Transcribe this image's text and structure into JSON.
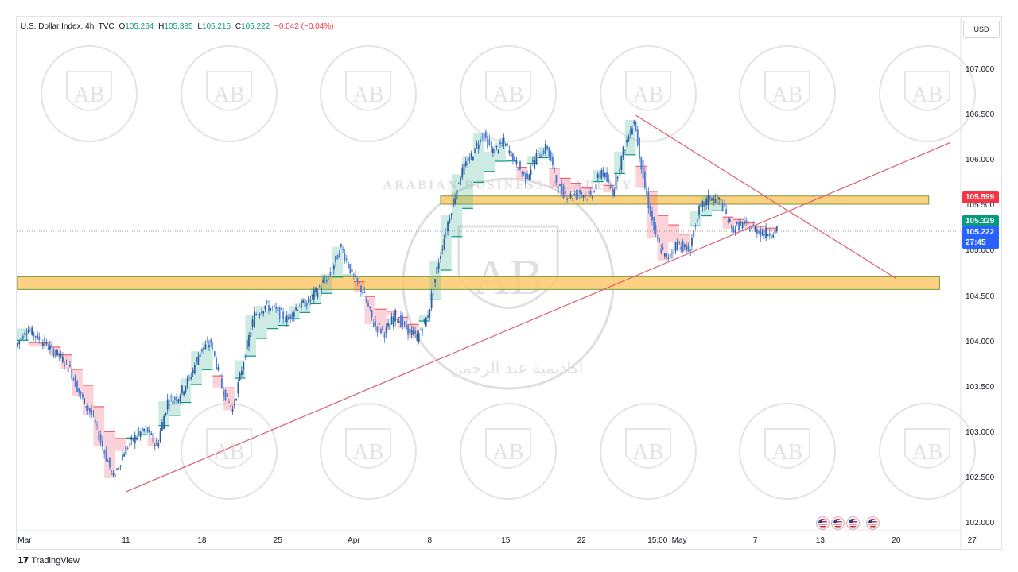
{
  "header": {
    "symbol": "U.S. Dollar Index, 4h, TVC",
    "open_label": "O",
    "open": "105.264",
    "high_label": "H",
    "high": "105.385",
    "low_label": "L",
    "low": "105.215",
    "close_label": "C",
    "close": "105.222",
    "change": "−0.042 (−0.04%)",
    "currency": "USD"
  },
  "price_tags": {
    "resistance": {
      "text": "105.599",
      "color": "#f23645"
    },
    "support_level": {
      "text": "105.329",
      "color": "#089981"
    },
    "last_price": {
      "text": "105.222",
      "color": "#2962ff"
    },
    "countdown": "27:45"
  },
  "footer": {
    "brand": "TradingView"
  },
  "watermark": {
    "title": "ARABIAN BUSINESS ACADEMY",
    "initials": "AB",
    "arabic": "أكاديمية عبد الرحمن"
  },
  "colors": {
    "up": "#089981",
    "down": "#2962ff",
    "candle": "#4a7ad6",
    "zone_fill": "#fcc96b",
    "zone_border": "#7a9a3a",
    "trendline": "#e05a6a",
    "cloud_green": "#4cb89a",
    "cloud_red": "#ef5f6f"
  },
  "events": {
    "icon": "us-flag-icon",
    "count": 4
  },
  "chart_data": {
    "type": "candlestick",
    "title": "U.S. Dollar Index, 4h, TVC",
    "ylim": [
      101.85,
      107.35
    ],
    "yticks": [
      "107.000",
      "106.500",
      "106.000",
      "105.500",
      "105.000",
      "104.500",
      "104.000",
      "103.500",
      "103.000",
      "102.500",
      "102.000"
    ],
    "yticks_values": [
      107.0,
      106.5,
      106.0,
      105.5,
      105.0,
      104.5,
      104.0,
      103.5,
      103.0,
      102.5,
      102.0
    ],
    "xticks": [
      "Mar",
      "11",
      "18",
      "25",
      "Apr",
      "8",
      "15",
      "22",
      "15:00",
      "May",
      "7",
      "13",
      "20",
      "27"
    ],
    "xticks_days": [
      0,
      10,
      17,
      24,
      31,
      38,
      45,
      52,
      59,
      61,
      68,
      74,
      81,
      88
    ],
    "price_path": [
      [
        0,
        103.95
      ],
      [
        1,
        104.15
      ],
      [
        3,
        103.95
      ],
      [
        4,
        103.85
      ],
      [
        5,
        103.7
      ],
      [
        6,
        103.4
      ],
      [
        7,
        103.2
      ],
      [
        8,
        102.85
      ],
      [
        9,
        102.5
      ],
      [
        10,
        102.8
      ],
      [
        11,
        102.95
      ],
      [
        12,
        103.05
      ],
      [
        13,
        102.85
      ],
      [
        14,
        103.35
      ],
      [
        15,
        103.4
      ],
      [
        16,
        103.6
      ],
      [
        17,
        103.9
      ],
      [
        18,
        104.0
      ],
      [
        19,
        103.5
      ],
      [
        20,
        103.25
      ],
      [
        21,
        103.8
      ],
      [
        22,
        104.3
      ],
      [
        23,
        104.4
      ],
      [
        24,
        104.35
      ],
      [
        25,
        104.25
      ],
      [
        26,
        104.4
      ],
      [
        27,
        104.45
      ],
      [
        28,
        104.6
      ],
      [
        29,
        104.75
      ],
      [
        30,
        105.05
      ],
      [
        31,
        104.75
      ],
      [
        32,
        104.55
      ],
      [
        33,
        104.2
      ],
      [
        34,
        104.1
      ],
      [
        35,
        104.3
      ],
      [
        36,
        104.15
      ],
      [
        37,
        104.05
      ],
      [
        38,
        104.3
      ],
      [
        39,
        104.9
      ],
      [
        40,
        105.4
      ],
      [
        41,
        105.85
      ],
      [
        42,
        106.05
      ],
      [
        43,
        106.3
      ],
      [
        44,
        106.1
      ],
      [
        45,
        106.2
      ],
      [
        46,
        106.0
      ],
      [
        47,
        105.8
      ],
      [
        48,
        106.05
      ],
      [
        49,
        106.15
      ],
      [
        50,
        105.7
      ],
      [
        51,
        105.6
      ],
      [
        52,
        105.65
      ],
      [
        53,
        105.6
      ],
      [
        54,
        105.9
      ],
      [
        55,
        105.65
      ],
      [
        56,
        106.1
      ],
      [
        57,
        106.45
      ],
      [
        58,
        105.7
      ],
      [
        59,
        105.15
      ],
      [
        60,
        104.9
      ],
      [
        61,
        105.1
      ],
      [
        62,
        105.0
      ],
      [
        63,
        105.45
      ],
      [
        64,
        105.6
      ],
      [
        65,
        105.55
      ],
      [
        66,
        105.25
      ],
      [
        67,
        105.3
      ],
      [
        68,
        105.25
      ],
      [
        69,
        105.2
      ],
      [
        70,
        105.22
      ]
    ],
    "zones": [
      {
        "low": 105.52,
        "high": 105.61,
        "from_day": 39,
        "to_day": 84
      },
      {
        "low": 104.58,
        "high": 104.72,
        "from_day": 0,
        "to_day": 85
      }
    ],
    "trendlines": [
      {
        "from": [
          10,
          102.35
        ],
        "to": [
          86,
          106.2
        ]
      },
      {
        "from": [
          57,
          106.5
        ],
        "to": [
          81,
          104.7
        ]
      }
    ],
    "dotted_line_price": 105.222,
    "data_labels": [
      "105.599",
      "105.329",
      "105.222"
    ]
  }
}
